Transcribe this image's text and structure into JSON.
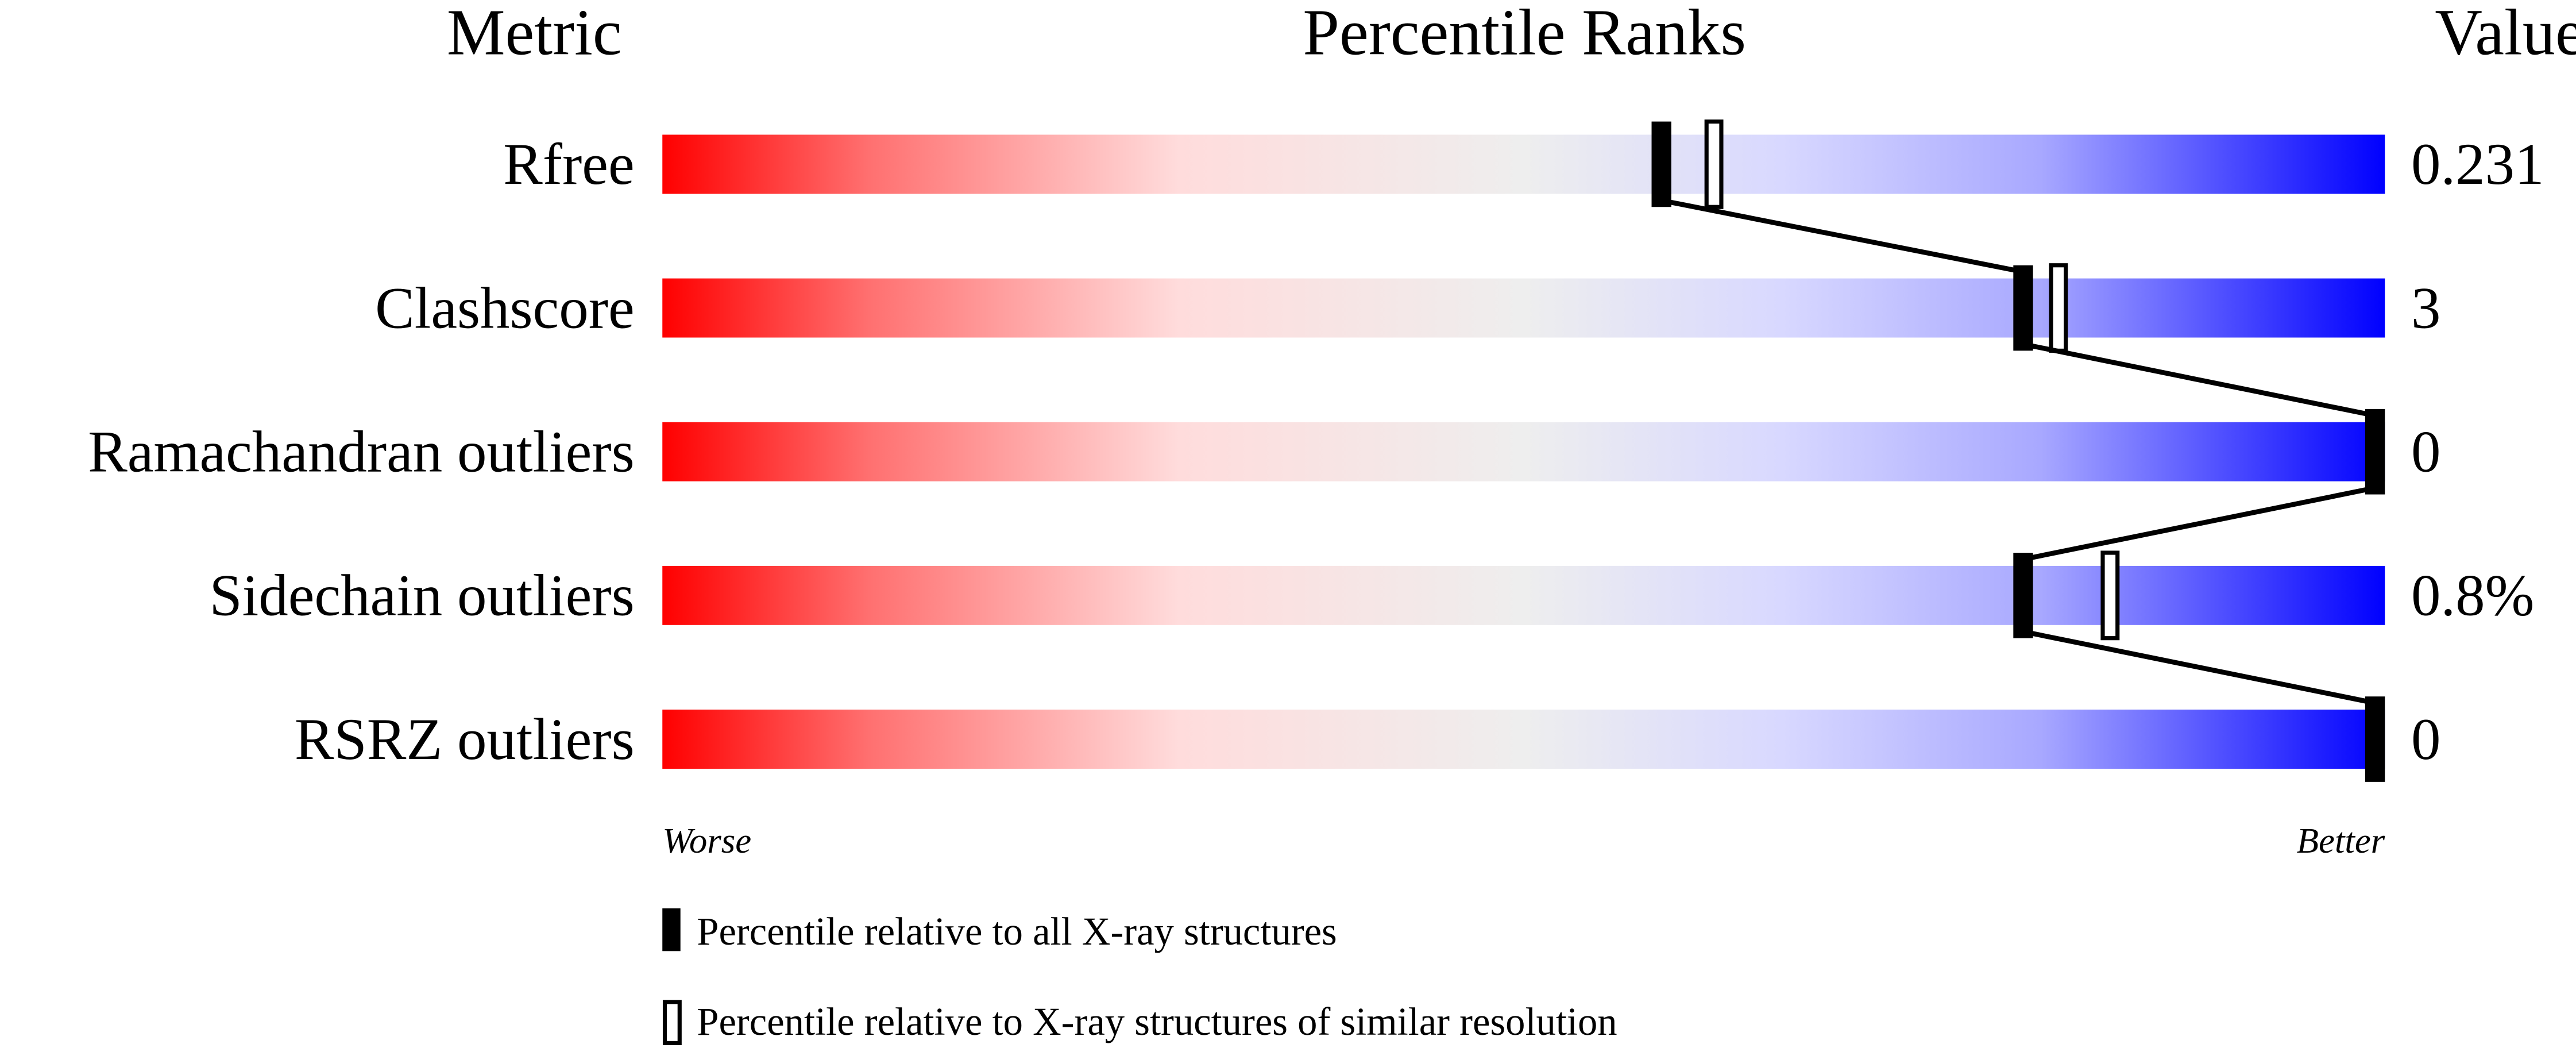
{
  "chart_data": {
    "type": "percentile-slider",
    "headers": {
      "metric": "Metric",
      "title": "Percentile Ranks",
      "value": "Value"
    },
    "scale_labels": {
      "low": "Worse",
      "high": "Better"
    },
    "xlim": [
      0,
      100
    ],
    "metrics": [
      {
        "name": "Rfree",
        "value": "0.231",
        "percentile_all": 58,
        "percentile_similar": 61
      },
      {
        "name": "Clashscore",
        "value": "3",
        "percentile_all": 79,
        "percentile_similar": 81
      },
      {
        "name": "Ramachandran outliers",
        "value": "0",
        "percentile_all": 100,
        "percentile_similar": 100
      },
      {
        "name": "Sidechain outliers",
        "value": "0.8%",
        "percentile_all": 79,
        "percentile_similar": 84
      },
      {
        "name": "RSRZ outliers",
        "value": "0",
        "percentile_all": 100,
        "percentile_similar": 100
      }
    ],
    "legend": [
      {
        "marker": "filled",
        "label": "Percentile relative to all X-ray structures"
      },
      {
        "marker": "open",
        "label": "Percentile relative to X-ray structures of similar resolution"
      }
    ],
    "colors": {
      "worse": "#ff0000",
      "middle": "#eeeeee",
      "better": "#0000ff"
    }
  }
}
